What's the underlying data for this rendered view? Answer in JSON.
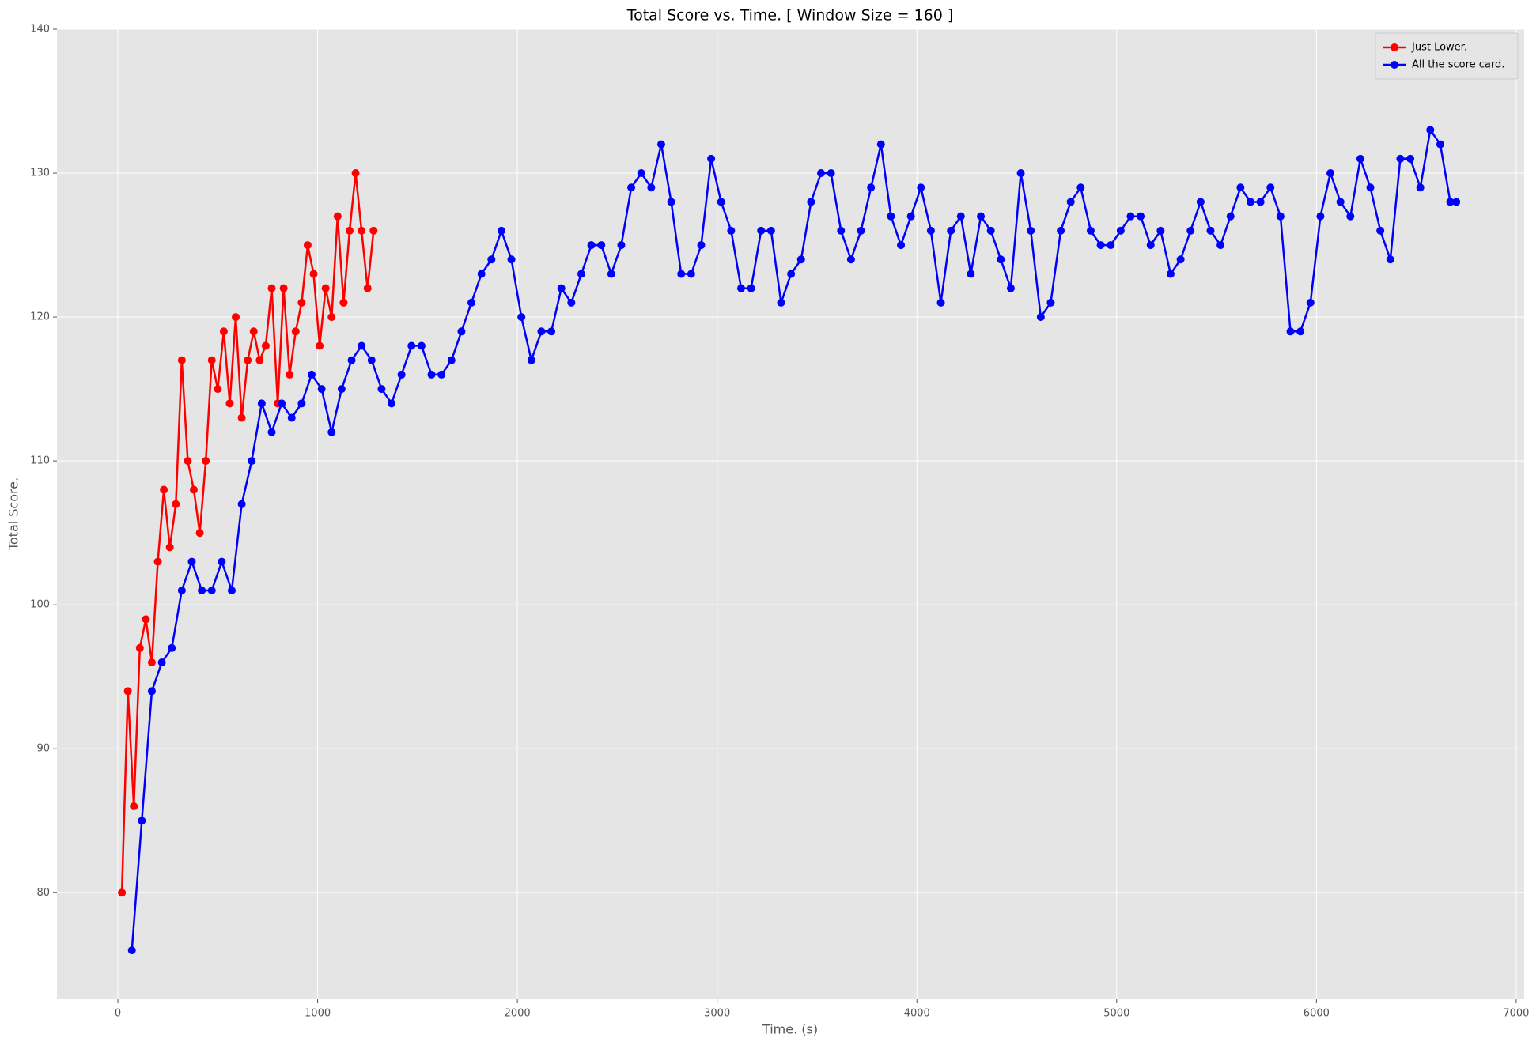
{
  "chart_data": {
    "type": "line",
    "title": "Total Score vs. Time. [ Window Size = 160 ]",
    "x_label": "Time. (s)",
    "y_label": "Total Score.",
    "xlim": [
      -305,
      7040
    ],
    "ylim": [
      72.6,
      140
    ],
    "xticks": [
      0,
      1000,
      2000,
      3000,
      4000,
      5000,
      6000,
      7000
    ],
    "yticks": [
      80,
      90,
      100,
      110,
      120,
      130,
      140
    ],
    "grid": true,
    "legend": "upper right",
    "markers": true,
    "series": [
      {
        "name": "Just Lower.",
        "color": "#ff0000",
        "x": [
          20,
          50,
          80,
          110,
          140,
          170,
          200,
          230,
          260,
          290,
          320,
          350,
          380,
          410,
          440,
          470,
          500,
          530,
          560,
          590,
          620,
          650,
          680,
          710,
          740,
          770,
          800,
          830,
          860,
          890,
          920,
          950,
          980,
          1010,
          1040,
          1070,
          1100,
          1130,
          1160,
          1190,
          1220,
          1250,
          1280
        ],
        "values": [
          80,
          94,
          86,
          97,
          99,
          96,
          103,
          108,
          104,
          107,
          117,
          110,
          108,
          105,
          110,
          117,
          115,
          119,
          114,
          120,
          113,
          117,
          119,
          117,
          118,
          122,
          114,
          122,
          116,
          119,
          121,
          125,
          123,
          118,
          122,
          120,
          127,
          121,
          126,
          130,
          126,
          122,
          126
        ]
      },
      {
        "name": "All the score card.",
        "color": "#0000ff",
        "x": [
          70,
          120,
          170,
          220,
          270,
          320,
          370,
          420,
          470,
          520,
          570,
          620,
          670,
          720,
          770,
          820,
          870,
          920,
          970,
          1020,
          1070,
          1120,
          1170,
          1220,
          1270,
          1320,
          1370,
          1420,
          1470,
          1520,
          1570,
          1620,
          1670,
          1720,
          1770,
          1820,
          1870,
          1920,
          1970,
          2020,
          2070,
          2120,
          2170,
          2220,
          2270,
          2320,
          2370,
          2420,
          2470,
          2520,
          2570,
          2620,
          2670,
          2720,
          2770,
          2820,
          2870,
          2920,
          2970,
          3020,
          3070,
          3120,
          3170,
          3220,
          3270,
          3320,
          3370,
          3420,
          3470,
          3520,
          3570,
          3620,
          3670,
          3720,
          3770,
          3820,
          3870,
          3920,
          3970,
          4020,
          4070,
          4120,
          4170,
          4220,
          4270,
          4320,
          4370,
          4420,
          4470,
          4520,
          4570,
          4620,
          4670,
          4720,
          4770,
          4820,
          4870,
          4920,
          4970,
          5020,
          5070,
          5120,
          5170,
          5220,
          5270,
          5320,
          5370,
          5420,
          5470,
          5520,
          5570,
          5620,
          5670,
          5720,
          5770,
          5820,
          5870,
          5920,
          5970,
          6020,
          6070,
          6120,
          6170,
          6220,
          6270,
          6320,
          6370,
          6420,
          6470,
          6520,
          6570,
          6620,
          6670,
          6700
        ],
        "values": [
          76,
          85,
          94,
          96,
          97,
          101,
          103,
          101,
          101,
          103,
          101,
          107,
          110,
          114,
          112,
          114,
          113,
          114,
          116,
          115,
          112,
          115,
          117,
          118,
          117,
          115,
          114,
          116,
          118,
          118,
          116,
          116,
          117,
          119,
          121,
          123,
          124,
          126,
          124,
          120,
          117,
          119,
          119,
          122,
          121,
          123,
          125,
          125,
          123,
          125,
          129,
          130,
          129,
          132,
          128,
          123,
          123,
          125,
          131,
          128,
          126,
          122,
          122,
          126,
          126,
          121,
          123,
          124,
          128,
          130,
          130,
          126,
          124,
          126,
          129,
          132,
          127,
          125,
          127,
          129,
          126,
          121,
          126,
          127,
          123,
          127,
          126,
          124,
          122,
          130,
          126,
          120,
          121,
          126,
          128,
          129,
          126,
          125,
          125,
          126,
          127,
          127,
          125,
          126,
          123,
          124,
          126,
          128,
          126,
          125,
          127,
          129,
          128,
          128,
          129,
          127,
          119,
          119,
          121,
          127,
          130,
          128,
          127,
          131,
          129,
          126,
          124,
          131,
          131,
          129,
          133,
          132,
          128,
          128
        ]
      }
    ]
  }
}
